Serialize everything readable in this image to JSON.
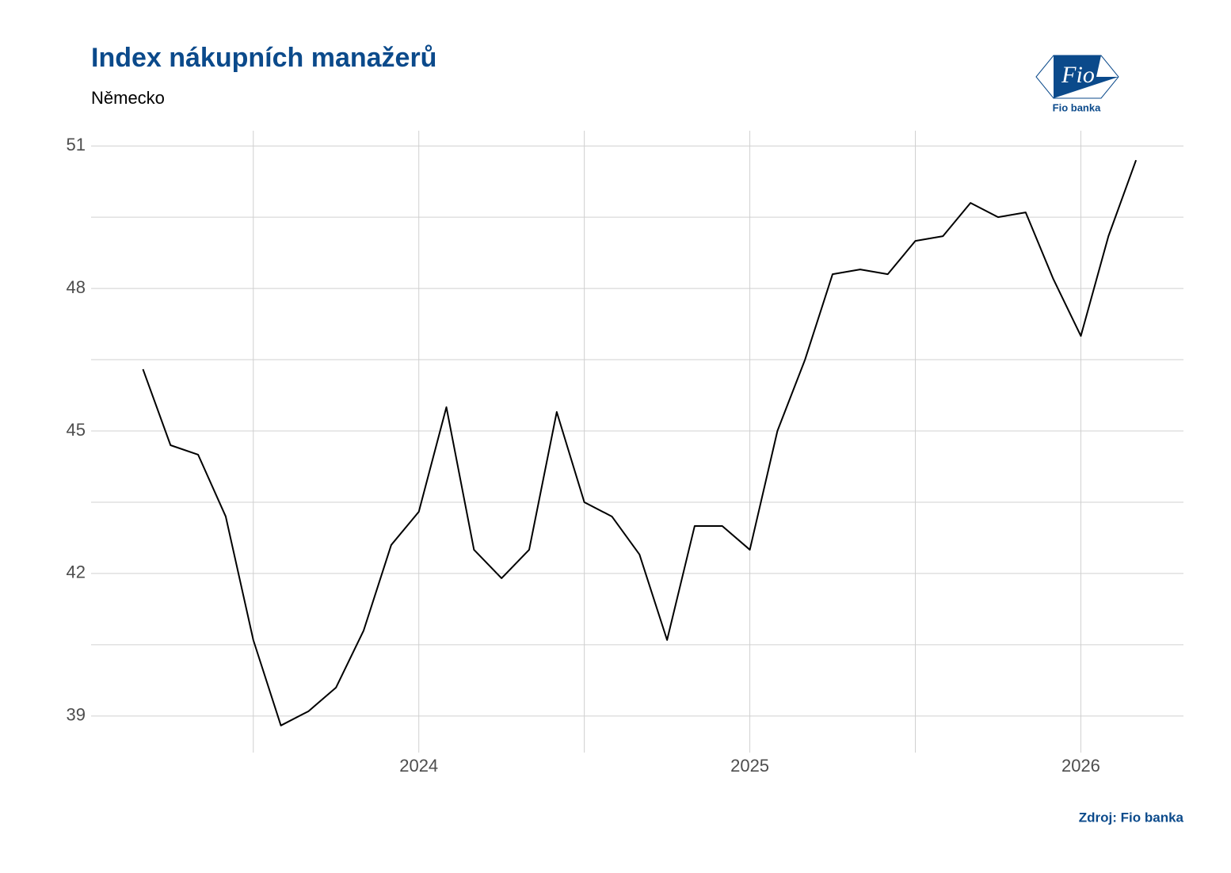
{
  "chart_data": {
    "type": "line",
    "title": "Index nákupních manažerů",
    "subtitle": "Německo",
    "source": "Zdroj: Fio banka",
    "logo": {
      "mark": "Fio",
      "name": "Fio banka"
    },
    "x": [
      "2023-03",
      "2023-04",
      "2023-05",
      "2023-06",
      "2023-07",
      "2023-08",
      "2023-09",
      "2023-10",
      "2023-11",
      "2023-12",
      "2024-01",
      "2024-02",
      "2024-03",
      "2024-04",
      "2024-05",
      "2024-06",
      "2024-07",
      "2024-08",
      "2024-09",
      "2024-10",
      "2024-11",
      "2024-12",
      "2025-01",
      "2025-02",
      "2025-03",
      "2025-04",
      "2025-05",
      "2025-06",
      "2025-07",
      "2025-08",
      "2025-09",
      "2025-10",
      "2025-11",
      "2025-12",
      "2026-01",
      "2026-02",
      "2026-03"
    ],
    "series": [
      {
        "name": "Německo",
        "color": "#000000",
        "values": [
          46.3,
          44.7,
          44.5,
          43.2,
          40.6,
          38.8,
          39.1,
          39.6,
          40.8,
          42.6,
          43.3,
          45.5,
          42.5,
          41.9,
          42.5,
          45.4,
          43.5,
          43.2,
          42.4,
          40.6,
          43.0,
          43.0,
          42.5,
          45.0,
          46.5,
          48.3,
          48.4,
          48.3,
          49.0,
          49.1,
          49.8,
          49.5,
          49.6,
          48.2,
          47.0,
          49.1,
          50.7
        ]
      }
    ],
    "xlim": [
      2023.01,
      2026.31
    ],
    "xticks": [
      2024,
      2025,
      2026
    ],
    "ylim": [
      38.23,
      51.32
    ],
    "yticks": [
      39,
      42,
      45,
      48,
      51
    ],
    "grid": true
  }
}
